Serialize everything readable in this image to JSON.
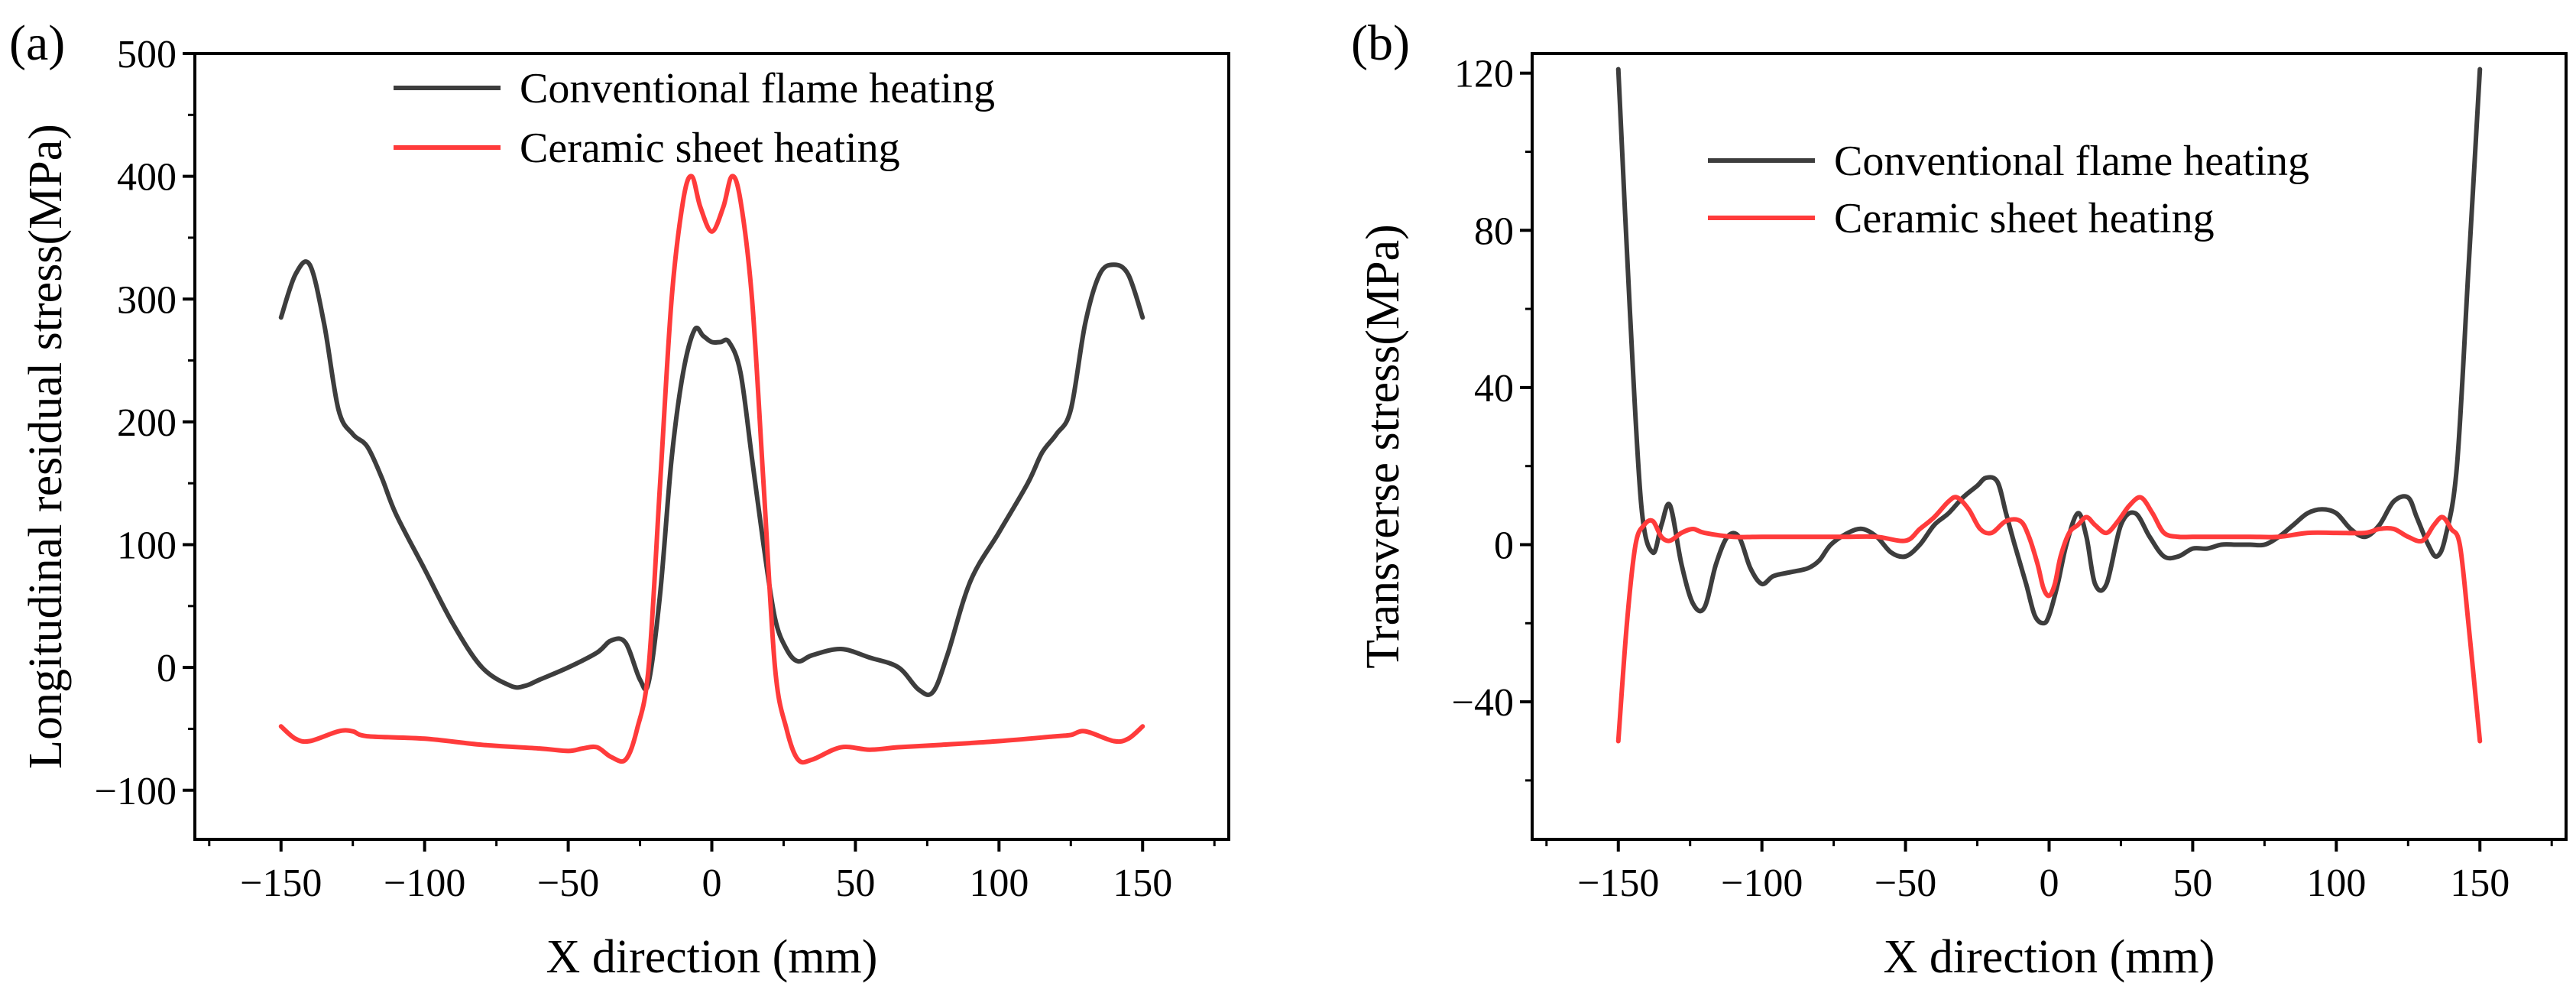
{
  "colors": {
    "series_conventional": "#3d3d3d",
    "series_ceramic": "#ff3b3b",
    "axis": "#000000"
  },
  "chart_data": [
    {
      "panel_label": "(a)",
      "type": "line",
      "xlabel": "X direction (mm)",
      "ylabel": "Longitudinal residual stress(MPa)",
      "xlim": [
        -180,
        180
      ],
      "ylim": [
        -140,
        500
      ],
      "xticks": [
        -150,
        -100,
        -50,
        0,
        50,
        100,
        150
      ],
      "yticks": [
        -100,
        0,
        100,
        200,
        300,
        400,
        500
      ],
      "xtick_labels": [
        "−150",
        "−100",
        "−50",
        "0",
        "50",
        "100",
        "150"
      ],
      "ytick_labels": [
        "−100",
        "0",
        "100",
        "200",
        "300",
        "400",
        "500"
      ],
      "legend": "top-center",
      "grid": false,
      "series": [
        {
          "name": "Conventional flame heating",
          "color": "#3d3d3d",
          "x": [
            -150,
            -145,
            -140,
            -135,
            -130,
            -125,
            -120,
            -115,
            -110,
            -100,
            -90,
            -80,
            -70,
            -65,
            -60,
            -50,
            -40,
            -35,
            -30,
            -25,
            -22,
            -18,
            -14,
            -10,
            -6,
            -3,
            0,
            3,
            6,
            10,
            14,
            18,
            22,
            26,
            30,
            35,
            45,
            55,
            65,
            72,
            77,
            82,
            90,
            100,
            110,
            115,
            120,
            125,
            130,
            135,
            140,
            145,
            150
          ],
          "y": [
            285,
            320,
            328,
            280,
            210,
            190,
            180,
            155,
            125,
            80,
            35,
            0,
            -15,
            -15,
            -10,
            0,
            12,
            22,
            20,
            -10,
            -12,
            60,
            170,
            240,
            275,
            270,
            265,
            265,
            265,
            240,
            170,
            100,
            40,
            15,
            5,
            10,
            15,
            8,
            0,
            -18,
            -20,
            10,
            70,
            110,
            150,
            175,
            190,
            210,
            280,
            320,
            328,
            320,
            285
          ]
        },
        {
          "name": "Ceramic sheet heating",
          "color": "#ff3b3b",
          "x": [
            -150,
            -145,
            -140,
            -130,
            -125,
            -120,
            -100,
            -80,
            -60,
            -50,
            -45,
            -40,
            -35,
            -30,
            -26,
            -22,
            -18,
            -14,
            -10,
            -7,
            -4,
            0,
            4,
            7,
            10,
            14,
            18,
            22,
            26,
            30,
            35,
            45,
            55,
            65,
            80,
            100,
            120,
            125,
            130,
            140,
            145,
            150
          ],
          "y": [
            -48,
            -58,
            -60,
            -52,
            -52,
            -56,
            -58,
            -63,
            -66,
            -68,
            -66,
            -65,
            -73,
            -75,
            -50,
            0,
            150,
            300,
            380,
            400,
            375,
            355,
            375,
            400,
            380,
            300,
            150,
            0,
            -50,
            -75,
            -75,
            -65,
            -67,
            -65,
            -63,
            -60,
            -56,
            -55,
            -52,
            -60,
            -58,
            -48
          ]
        }
      ]
    },
    {
      "panel_label": "(b)",
      "type": "line",
      "xlabel": "X direction (mm)",
      "ylabel": "Transverse stress(MPa)",
      "xlim": [
        -180,
        180
      ],
      "ylim": [
        -75,
        125
      ],
      "xticks": [
        -150,
        -100,
        -50,
        0,
        50,
        100,
        150
      ],
      "yticks": [
        -40,
        0,
        40,
        80,
        120
      ],
      "xtick_labels": [
        "−150",
        "−100",
        "−50",
        "0",
        "50",
        "100",
        "150"
      ],
      "ytick_labels": [
        "−40",
        "0",
        "40",
        "80",
        "120"
      ],
      "legend": "top-center",
      "grid": false,
      "series": [
        {
          "name": "Conventional flame heating",
          "color": "#3d3d3d",
          "x": [
            -150,
            -146,
            -142,
            -138,
            -135,
            -132,
            -128,
            -124,
            -120,
            -116,
            -112,
            -108,
            -104,
            -100,
            -96,
            -90,
            -84,
            -80,
            -76,
            -70,
            -65,
            -60,
            -55,
            -50,
            -45,
            -40,
            -35,
            -30,
            -25,
            -22,
            -18,
            -15,
            -12,
            -8,
            -5,
            -2,
            0,
            3,
            6,
            10,
            13,
            16,
            20,
            25,
            30,
            35,
            40,
            45,
            50,
            55,
            60,
            65,
            70,
            75,
            80,
            85,
            90,
            95,
            100,
            105,
            110,
            115,
            120,
            125,
            128,
            132,
            135,
            138,
            142,
            146,
            150
          ],
          "y": [
            121,
            60,
            10,
            -2,
            5,
            10,
            -5,
            -15,
            -16,
            -5,
            2,
            2,
            -6,
            -10,
            -8,
            -7,
            -6,
            -4,
            0,
            3,
            4,
            2,
            -2,
            -3,
            0,
            5,
            8,
            12,
            15,
            17,
            16,
            8,
            0,
            -10,
            -18,
            -20,
            -18,
            -10,
            0,
            8,
            2,
            -10,
            -10,
            5,
            8,
            2,
            -3,
            -3,
            -1,
            -1,
            0,
            0,
            0,
            0,
            2,
            5,
            8,
            9,
            8,
            4,
            2,
            5,
            11,
            12,
            7,
            0,
            -3,
            2,
            20,
            70,
            121
          ]
        },
        {
          "name": "Ceramic sheet heating",
          "color": "#ff3b3b",
          "x": [
            -150,
            -147,
            -144,
            -141,
            -138,
            -135,
            -132,
            -128,
            -124,
            -120,
            -110,
            -100,
            -90,
            -80,
            -70,
            -60,
            -50,
            -45,
            -40,
            -35,
            -32,
            -28,
            -24,
            -20,
            -15,
            -10,
            -7,
            -4,
            -2,
            0,
            2,
            4,
            7,
            10,
            13,
            16,
            20,
            24,
            28,
            32,
            36,
            40,
            45,
            50,
            60,
            70,
            80,
            90,
            100,
            110,
            115,
            120,
            125,
            130,
            134,
            137,
            140,
            143,
            146,
            150
          ],
          "y": [
            -50,
            -20,
            0,
            5,
            6,
            2,
            1,
            3,
            4,
            3,
            2,
            2,
            2,
            2,
            2,
            2,
            1,
            4,
            7,
            11,
            12,
            9,
            4,
            3,
            6,
            6,
            2,
            -5,
            -11,
            -13,
            -10,
            -3,
            3,
            5,
            7,
            5,
            3,
            6,
            10,
            12,
            8,
            3,
            2,
            2,
            2,
            2,
            2,
            3,
            3,
            3,
            4,
            4,
            2,
            1,
            5,
            7,
            4,
            0,
            -20,
            -50
          ]
        }
      ]
    }
  ]
}
